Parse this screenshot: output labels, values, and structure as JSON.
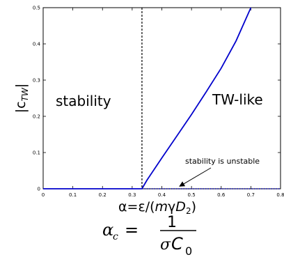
{
  "chart_data": {
    "type": "line",
    "xlim": [
      0,
      0.8
    ],
    "ylim": [
      0,
      0.5
    ],
    "x_ticks": [
      "0",
      "0.1",
      "0.2",
      "0.3",
      "0.4",
      "0.5",
      "0.6",
      "0.7",
      "0.8"
    ],
    "y_ticks": [
      "0",
      "0.1",
      "0.2",
      "0.3",
      "0.4",
      "0.5"
    ],
    "y_tick_values": [
      0,
      0.1,
      0.2,
      0.3,
      0.4,
      0.5
    ],
    "x_tick_values": [
      0,
      0.1,
      0.2,
      0.3,
      0.4,
      0.5,
      0.6,
      0.7,
      0.8
    ],
    "ylabel": "|c_TW|",
    "xlabel": "α=ε/(mγD₂)",
    "critical_alpha": 0.333,
    "series": [
      {
        "style": "solid",
        "color": "#0000cc",
        "x": [
          0,
          0.333
        ],
        "y": [
          0,
          0
        ]
      },
      {
        "style": "solid",
        "color": "#0000cc",
        "x": [
          0.333,
          0.35,
          0.4,
          0.45,
          0.5,
          0.55,
          0.6,
          0.65,
          0.7
        ],
        "y": [
          0,
          0.024,
          0.085,
          0.145,
          0.205,
          0.268,
          0.333,
          0.408,
          0.5
        ]
      },
      {
        "style": "dotted",
        "color": "#0000cc",
        "x": [
          0.333,
          0.8
        ],
        "y": [
          0,
          0
        ]
      }
    ],
    "regions": {
      "left": "stability",
      "right": "TW-like"
    },
    "annotation": {
      "text": "stability is unstable",
      "arrow_to": [
        0.46,
        0.005
      ]
    },
    "formula": {
      "lhs": "α",
      "lhs_sub": "c",
      "eq": "=",
      "numerator": "1",
      "den_sigma": "σ",
      "den_C": "C",
      "den_sub": "0"
    },
    "colors": {
      "curve": "#0000cc",
      "axes": "#000000",
      "critical_line": "#000000"
    }
  }
}
